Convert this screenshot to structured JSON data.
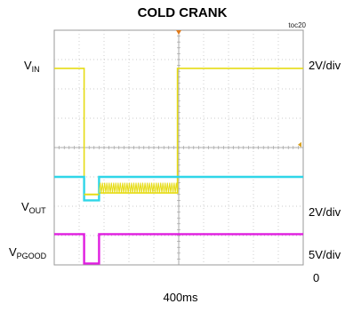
{
  "chart_data": {
    "type": "line",
    "title": "COLD CRANK",
    "tag": "toc20",
    "timebase": "400ms",
    "divisions": {
      "x": 10,
      "y": 8
    },
    "channels": [
      {
        "name": "V",
        "sub": "IN",
        "scale": "2V/div",
        "color": "#e6dc14",
        "points": [
          [
            0,
            6.7
          ],
          [
            1.2,
            6.7
          ],
          [
            1.2,
            2.2
          ],
          [
            1.8,
            2.2
          ],
          [
            1.8,
            2.45
          ],
          [
            4.95,
            2.45
          ],
          [
            4.95,
            6.7
          ],
          [
            10,
            6.7
          ]
        ]
      },
      {
        "name": "V",
        "sub": "OUT",
        "scale": "2V/div",
        "color": "#2fd6e8",
        "points": [
          [
            0,
            3.0
          ],
          [
            1.2,
            3.0
          ],
          [
            1.2,
            2.2
          ],
          [
            1.8,
            2.2
          ],
          [
            1.8,
            3.0
          ],
          [
            10,
            3.0
          ]
        ]
      },
      {
        "name": "V",
        "sub": "PGOOD",
        "scale": "5V/div",
        "color": "#e01ee0",
        "points": [
          [
            0,
            1.05
          ],
          [
            1.2,
            1.05
          ],
          [
            1.2,
            0.05
          ],
          [
            1.8,
            0.05
          ],
          [
            1.8,
            1.05
          ],
          [
            10,
            1.05
          ]
        ]
      }
    ],
    "zero_label": "0"
  }
}
